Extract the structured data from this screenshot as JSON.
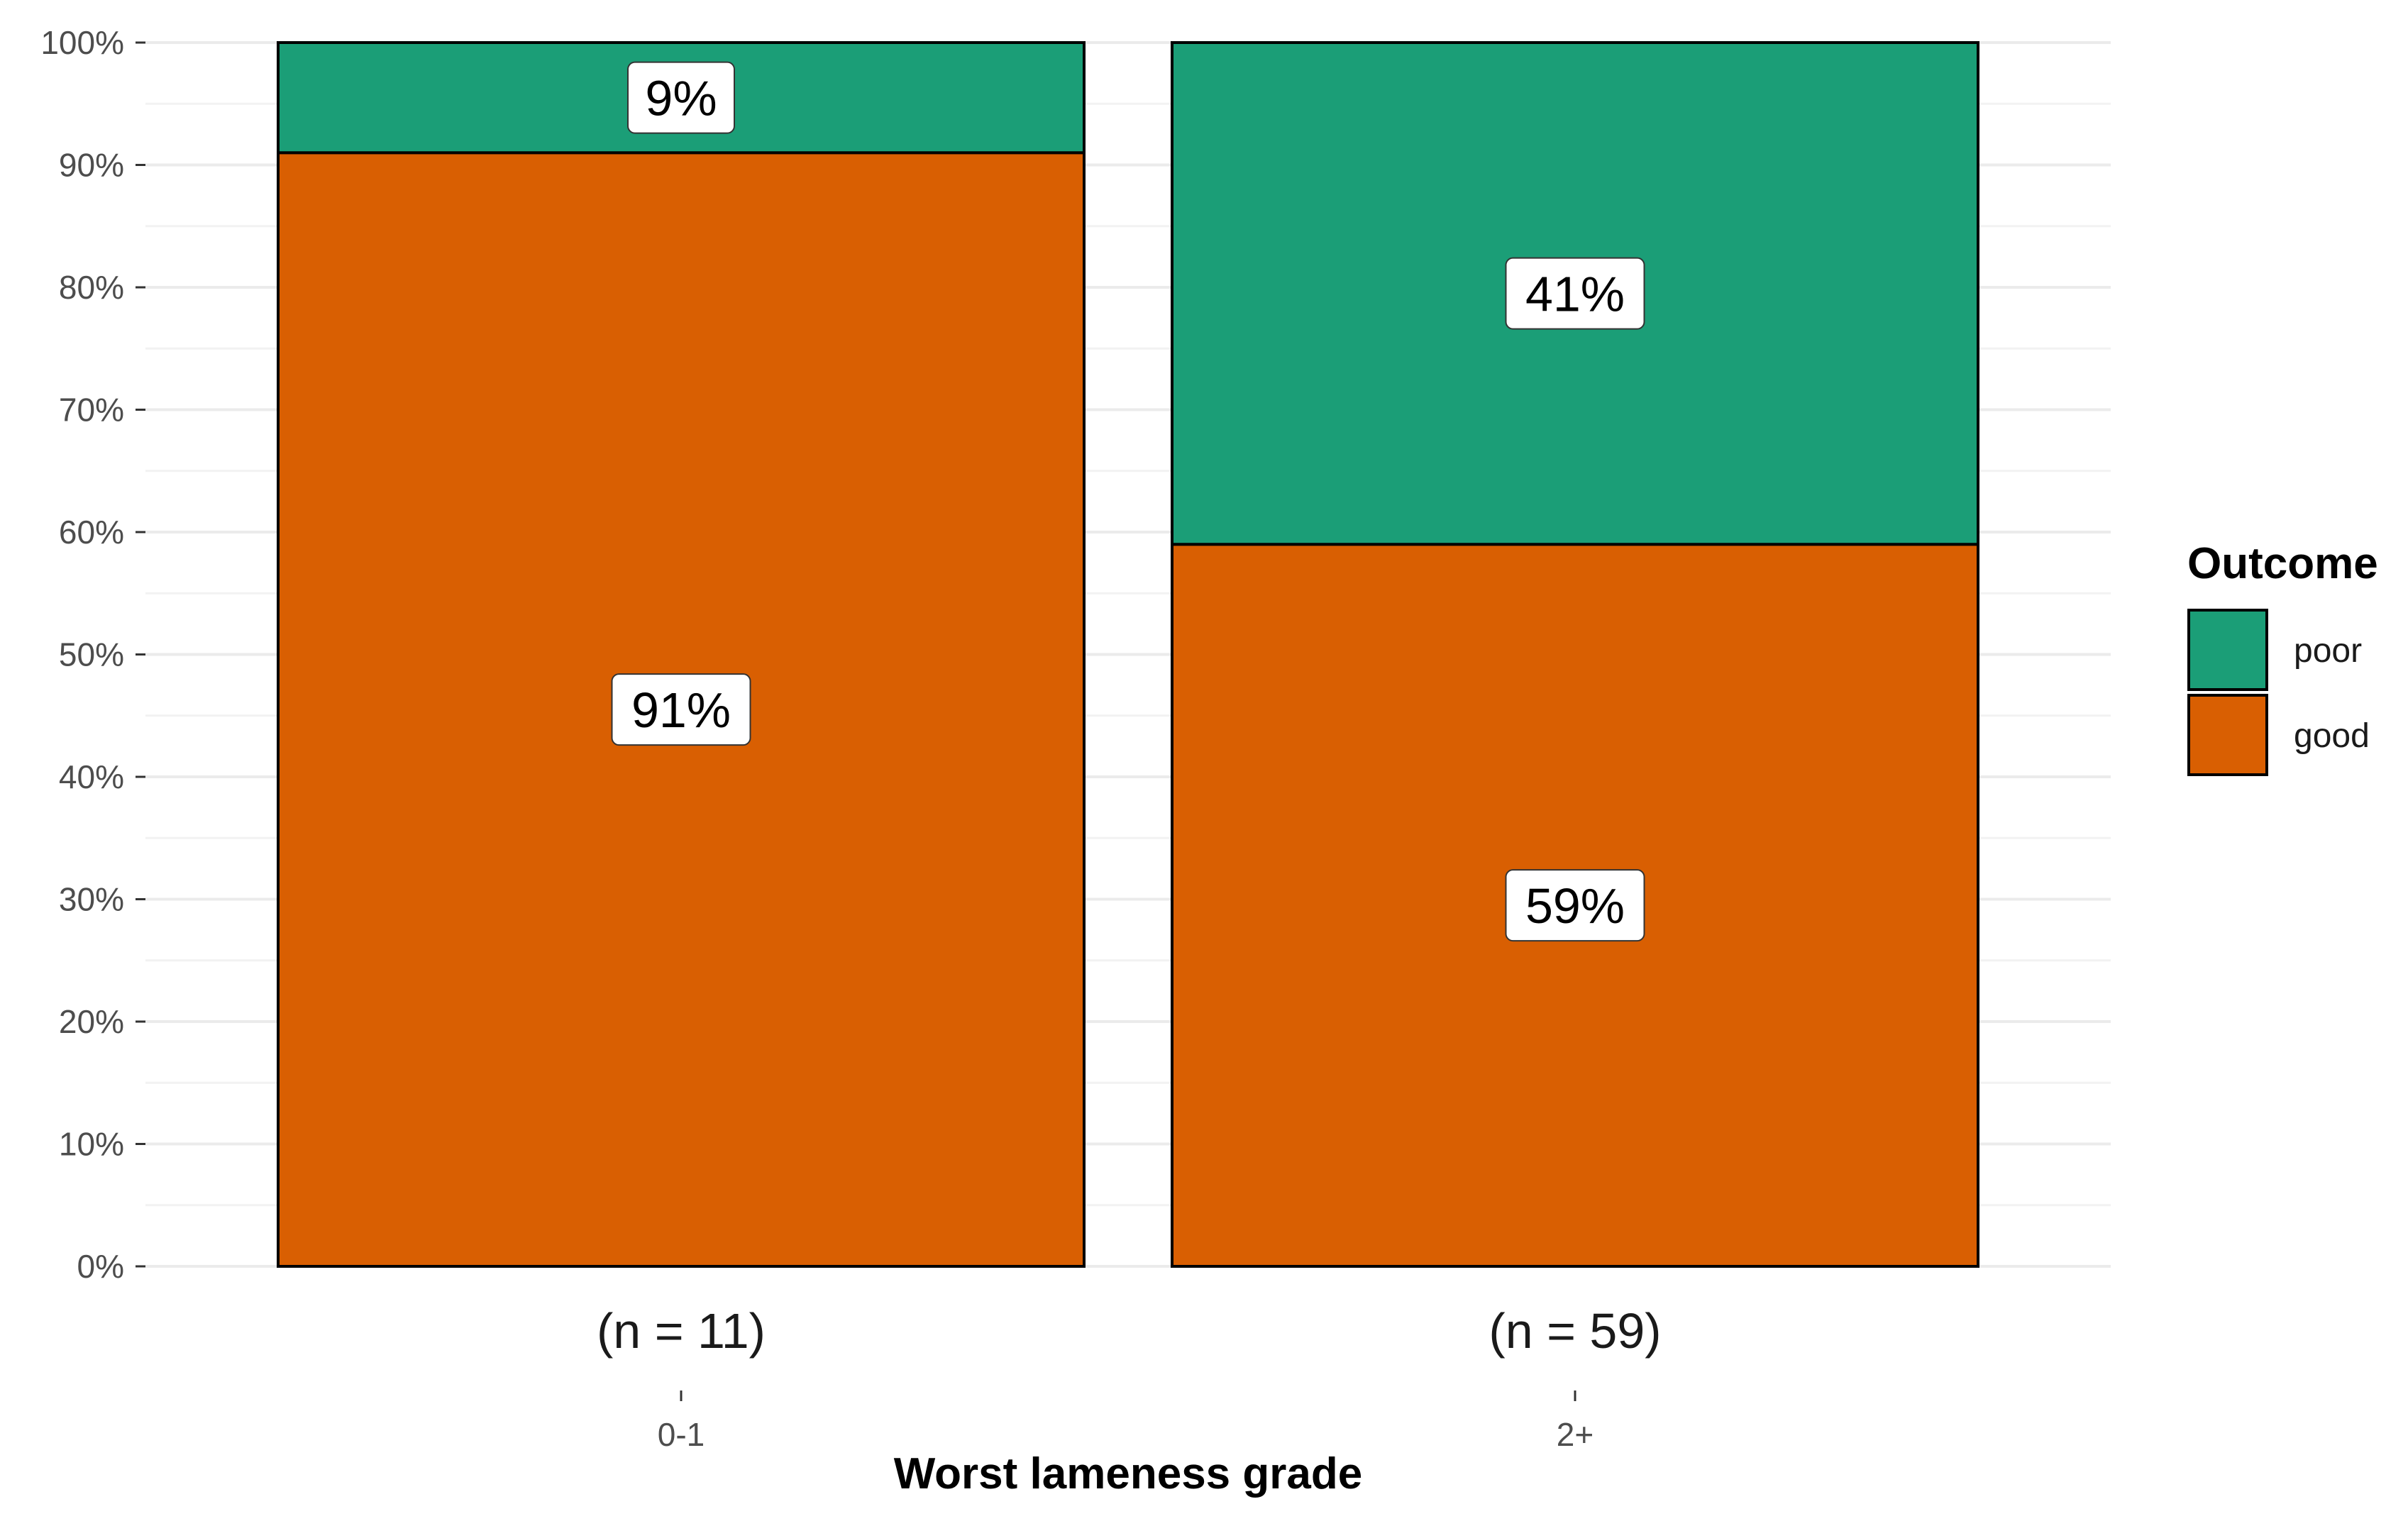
{
  "chart_data": {
    "type": "bar",
    "stacked": true,
    "percent": true,
    "categories": [
      "0-1",
      "2+"
    ],
    "category_counts": [
      "(n = 11)",
      "(n = 59)"
    ],
    "series": [
      {
        "name": "good",
        "values": [
          91,
          59
        ],
        "labels": [
          "91%",
          "59%"
        ]
      },
      {
        "name": "poor",
        "values": [
          9,
          41
        ],
        "labels": [
          "9%",
          "41%"
        ]
      }
    ],
    "xlabel": "Worst lameness grade",
    "ylabel": "",
    "ylim": [
      0,
      100
    ],
    "yticks": [
      0,
      10,
      20,
      30,
      40,
      50,
      60,
      70,
      80,
      90,
      100
    ],
    "ytick_labels": [
      "0%",
      "10%",
      "20%",
      "30%",
      "40%",
      "50%",
      "60%",
      "70%",
      "80%",
      "90%",
      "100%"
    ],
    "grid": true,
    "legend": {
      "title": "Outcome",
      "placement": "right",
      "items": [
        "poor",
        "good"
      ]
    },
    "colors": {
      "good": "#D95F02",
      "poor": "#1B9E77"
    }
  }
}
